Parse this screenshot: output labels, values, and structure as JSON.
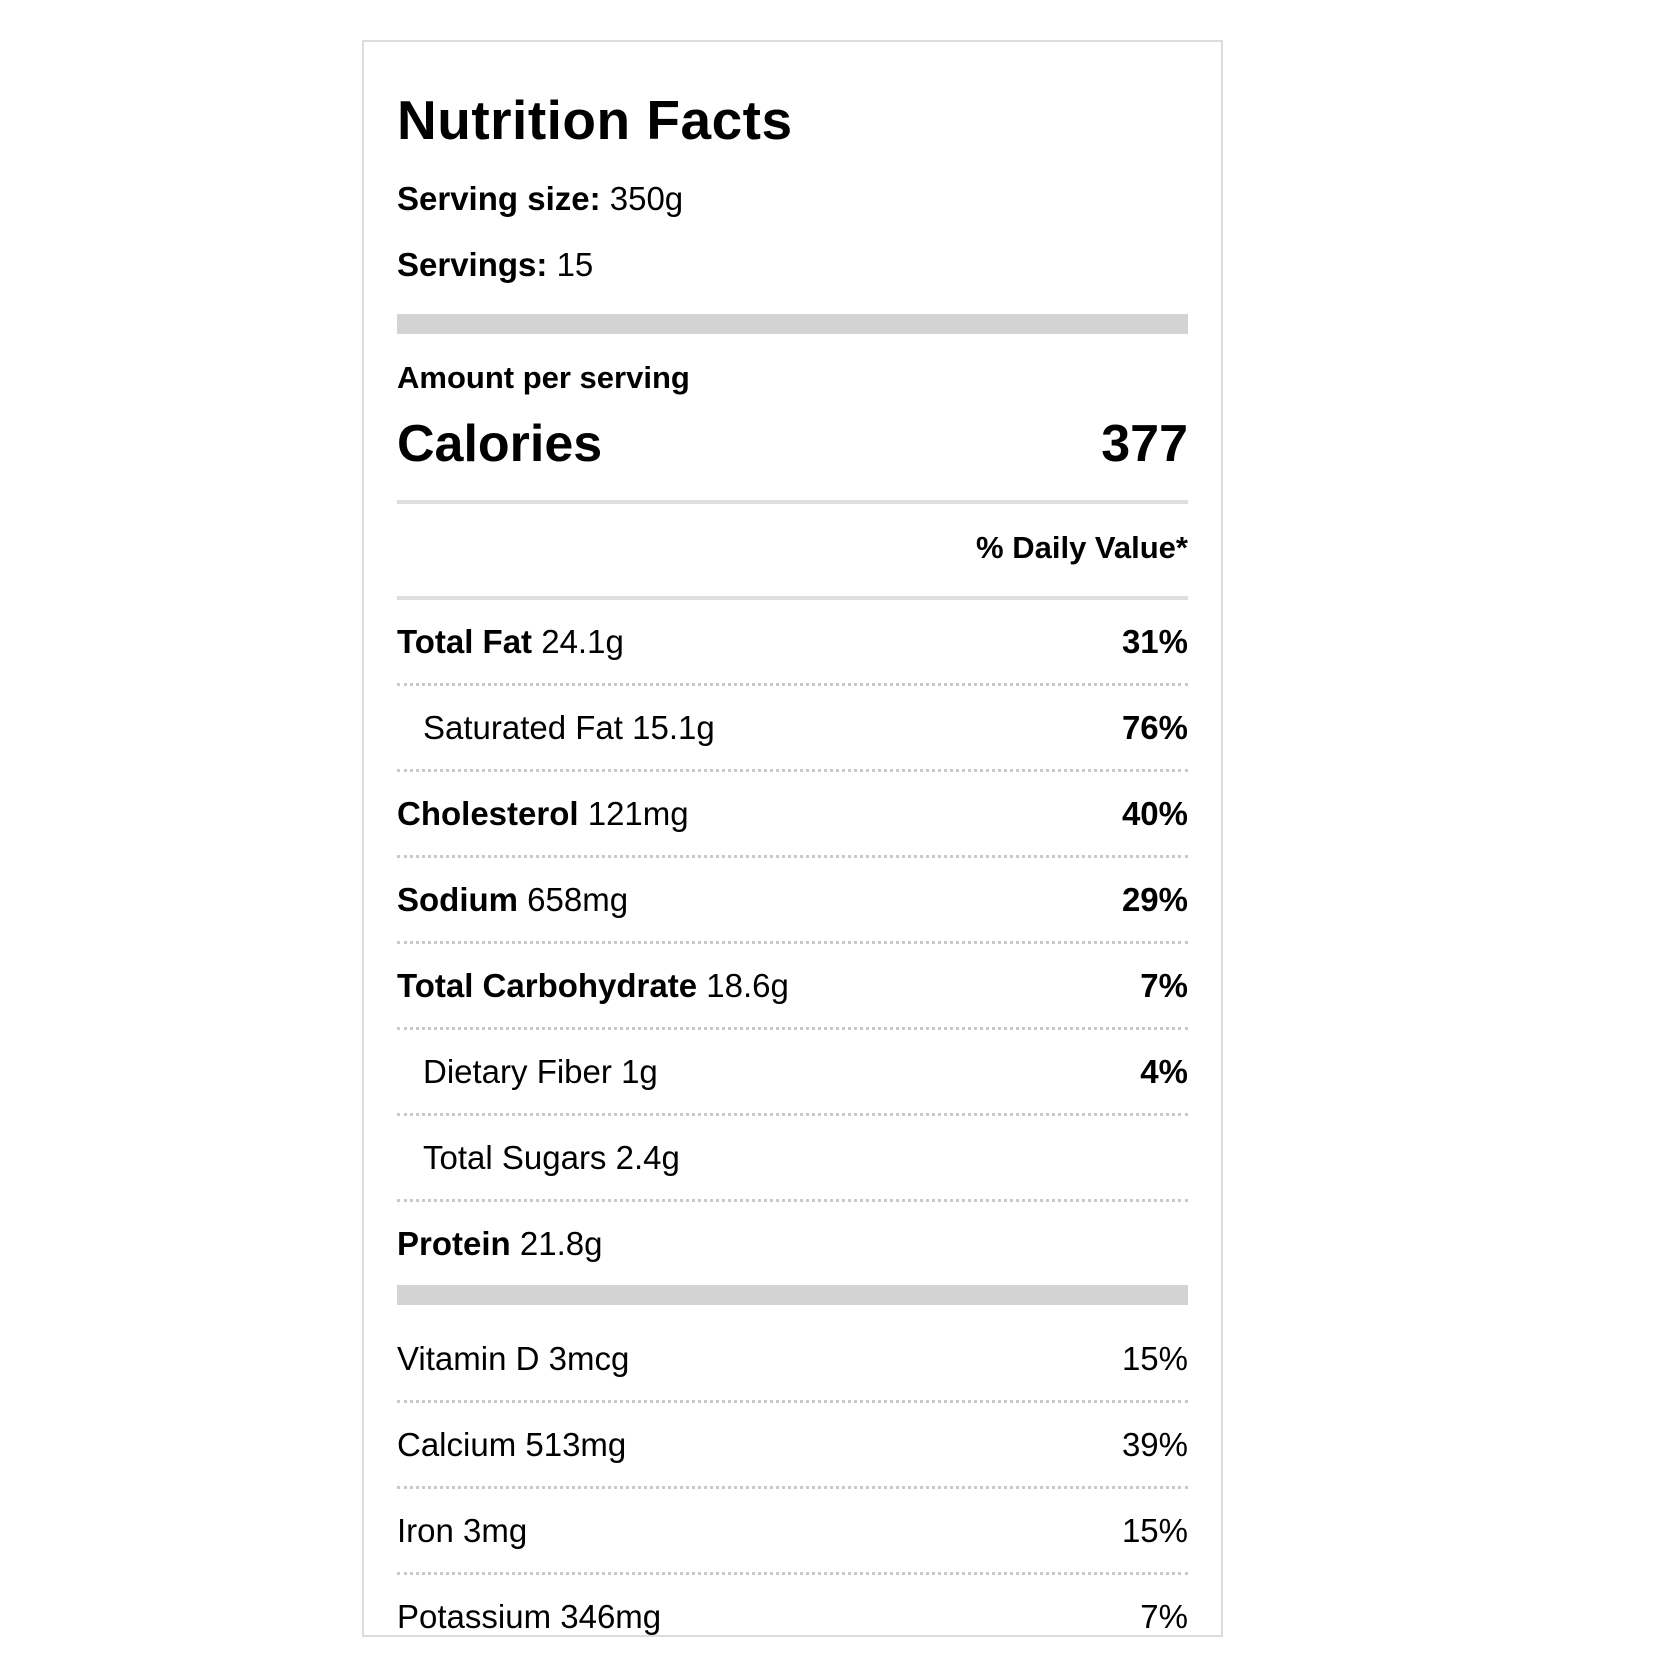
{
  "label": {
    "title": "Nutrition Facts",
    "serving_size": {
      "label": "Serving size:",
      "value": "350g"
    },
    "servings": {
      "label": "Servings:",
      "value": "15"
    },
    "amount_per_serving": "Amount per serving",
    "calories": {
      "label": "Calories",
      "value": "377"
    },
    "daily_value_header": "% Daily Value*",
    "nutrients": [
      {
        "name": "Total Fat",
        "amount": "24.1g",
        "daily_value": "31%"
      },
      {
        "name": "Saturated Fat",
        "amount": "15.1g",
        "daily_value": "76%"
      },
      {
        "name": "Cholesterol",
        "amount": "121mg",
        "daily_value": "40%"
      },
      {
        "name": "Sodium",
        "amount": "658mg",
        "daily_value": "29%"
      },
      {
        "name": "Total Carbohydrate",
        "amount": "18.6g",
        "daily_value": "7%"
      },
      {
        "name": "Dietary Fiber",
        "amount": "1g",
        "daily_value": "4%"
      },
      {
        "name": "Total Sugars",
        "amount": "2.4g",
        "daily_value": ""
      },
      {
        "name": "Protein",
        "amount": "21.8g",
        "daily_value": ""
      }
    ],
    "micronutrients": [
      {
        "name": "Vitamin D",
        "amount": "3mcg",
        "daily_value": "15%"
      },
      {
        "name": "Calcium",
        "amount": "513mg",
        "daily_value": "39%"
      },
      {
        "name": "Iron",
        "amount": "3mg",
        "daily_value": "15%"
      },
      {
        "name": "Potassium",
        "amount": "346mg",
        "daily_value": "7%"
      }
    ],
    "colors": {
      "bar": "#d3d3d3",
      "dotted_separator": "#c9c9c9",
      "solid_rule": "#dedede",
      "card_border": "#dcdcdc",
      "text": "#000000"
    }
  }
}
